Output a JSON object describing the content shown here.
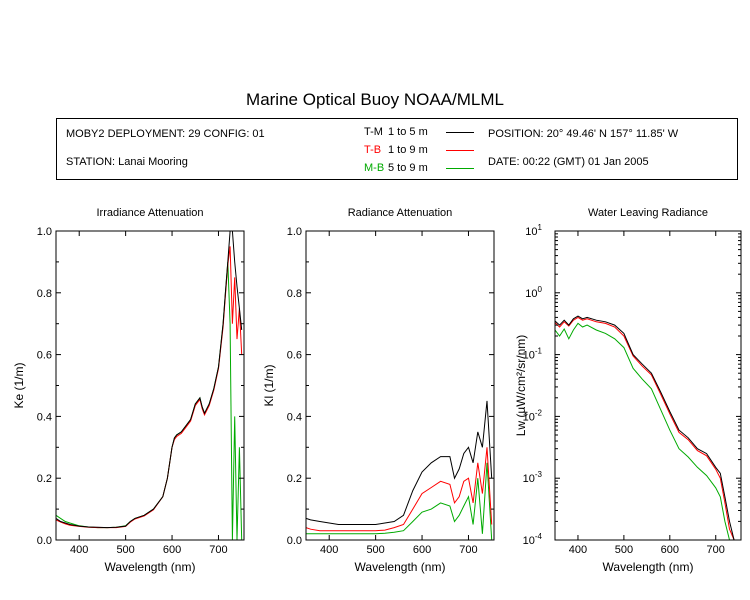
{
  "title": "Marine Optical Buoy NOAA/MLML",
  "info": {
    "deployment": "MOBY2 DEPLOYMENT: 29 CONFIG: 01",
    "station": "STATION: Lanai Mooring",
    "position": "POSITION: 20° 49.46' N   157° 11.85' W",
    "date": "DATE: 00:22 (GMT) 01 Jan 2005"
  },
  "legend": [
    {
      "code": "T-M",
      "range": "1 to 5  m",
      "color": "#000000"
    },
    {
      "code": "T-B",
      "range": "1 to 9  m",
      "color": "#ff0000"
    },
    {
      "code": "M-B",
      "range": "5 to 9  m",
      "color": "#00aa00"
    }
  ],
  "chart_data": [
    {
      "type": "line",
      "title": "Irradiance Attenuation",
      "xlabel": "Wavelength (nm)",
      "ylabel": "Ke  (1/m)",
      "xlim": [
        350,
        755
      ],
      "ylim": [
        0,
        1.0
      ],
      "xticks": [
        "400",
        "500",
        "600",
        "700"
      ],
      "yticks": [
        "0.0",
        "0.2",
        "0.4",
        "0.6",
        "0.8",
        "1.0"
      ],
      "x": [
        350,
        360,
        370,
        380,
        400,
        420,
        440,
        460,
        480,
        500,
        510,
        520,
        540,
        560,
        580,
        590,
        600,
        605,
        610,
        620,
        630,
        640,
        650,
        660,
        665,
        670,
        680,
        690,
        700,
        710,
        715,
        720,
        725,
        730,
        735,
        740,
        745,
        750
      ],
      "series": [
        {
          "name": "T-M",
          "values": [
            0.07,
            0.06,
            0.055,
            0.05,
            0.045,
            0.042,
            0.041,
            0.04,
            0.041,
            0.045,
            0.06,
            0.07,
            0.08,
            0.1,
            0.14,
            0.2,
            0.3,
            0.33,
            0.34,
            0.35,
            0.37,
            0.39,
            0.44,
            0.46,
            0.43,
            0.41,
            0.44,
            0.49,
            0.56,
            0.7,
            0.8,
            0.9,
            1.0,
            1.0,
            0.9,
            0.82,
            0.75,
            0.68
          ]
        },
        {
          "name": "T-B",
          "values": [
            0.065,
            0.058,
            0.052,
            0.048,
            0.044,
            0.041,
            0.04,
            0.04,
            0.04,
            0.044,
            0.058,
            0.068,
            0.078,
            0.098,
            0.14,
            0.2,
            0.3,
            0.325,
            0.335,
            0.345,
            0.365,
            0.385,
            0.435,
            0.455,
            0.425,
            0.405,
            0.435,
            0.485,
            0.555,
            0.69,
            0.79,
            0.89,
            0.95,
            0.7,
            0.85,
            0.65,
            0.75,
            0.6
          ]
        },
        {
          "name": "M-B",
          "values": [
            0.08,
            0.07,
            0.06,
            0.055,
            0.046,
            0.042,
            0.04,
            0.04,
            0.041,
            0.046,
            0.06,
            0.07,
            0.08,
            0.1,
            0.14,
            0.2,
            0.3,
            0.33,
            0.34,
            0.35,
            0.37,
            0.39,
            0.44,
            0.46,
            0.43,
            0.41,
            0.44,
            0.49,
            0.56,
            0.7,
            0.8,
            0.9,
            0.7,
            0.0,
            0.4,
            0.0,
            0.3,
            0.0
          ]
        }
      ]
    },
    {
      "type": "line",
      "title": "Radiance Attenuation",
      "xlabel": "Wavelength (nm)",
      "ylabel": "Kl  (1/m)",
      "xlim": [
        350,
        755
      ],
      "ylim": [
        0,
        1.0
      ],
      "xticks": [
        "400",
        "500",
        "600",
        "700"
      ],
      "yticks": [
        "0.0",
        "0.2",
        "0.4",
        "0.6",
        "0.8",
        "1.0"
      ],
      "x": [
        350,
        360,
        380,
        400,
        420,
        440,
        460,
        480,
        500,
        520,
        540,
        560,
        580,
        600,
        620,
        640,
        660,
        670,
        680,
        690,
        700,
        710,
        720,
        730,
        740,
        750
      ],
      "series": [
        {
          "name": "T-M",
          "values": [
            0.07,
            0.065,
            0.06,
            0.055,
            0.05,
            0.05,
            0.05,
            0.05,
            0.05,
            0.055,
            0.06,
            0.08,
            0.16,
            0.22,
            0.25,
            0.27,
            0.27,
            0.2,
            0.23,
            0.28,
            0.3,
            0.25,
            0.35,
            0.3,
            0.45,
            0.2
          ]
        },
        {
          "name": "T-B",
          "values": [
            0.04,
            0.035,
            0.03,
            0.03,
            0.03,
            0.03,
            0.03,
            0.03,
            0.03,
            0.032,
            0.04,
            0.05,
            0.1,
            0.15,
            0.17,
            0.19,
            0.18,
            0.12,
            0.14,
            0.19,
            0.2,
            0.12,
            0.25,
            0.15,
            0.3,
            0.05
          ]
        },
        {
          "name": "M-B",
          "values": [
            0.02,
            0.02,
            0.02,
            0.02,
            0.02,
            0.02,
            0.02,
            0.02,
            0.02,
            0.022,
            0.025,
            0.03,
            0.06,
            0.09,
            0.1,
            0.12,
            0.11,
            0.06,
            0.08,
            0.11,
            0.14,
            0.05,
            0.2,
            0.02,
            0.25,
            0.0
          ]
        }
      ]
    },
    {
      "type": "line",
      "title": "Water Leaving Radiance",
      "xlabel": "Wavelength (nm)",
      "ylabel": "Lw  (µW/cm²/sr/nm)",
      "xlim": [
        350,
        755
      ],
      "ylim": [
        0.0001,
        10
      ],
      "log_y": true,
      "xticks": [
        "400",
        "500",
        "600",
        "700"
      ],
      "yticks": [
        "10^1",
        "10^0",
        "10^-1",
        "10^-2",
        "10^-3",
        "10^-4"
      ],
      "x": [
        350,
        360,
        370,
        380,
        390,
        400,
        410,
        420,
        440,
        460,
        480,
        500,
        520,
        540,
        560,
        580,
        600,
        620,
        640,
        660,
        680,
        700,
        710,
        720,
        730,
        740
      ],
      "series": [
        {
          "name": "T-M",
          "values": [
            0.35,
            0.3,
            0.36,
            0.3,
            0.38,
            0.42,
            0.38,
            0.4,
            0.36,
            0.34,
            0.3,
            0.22,
            0.1,
            0.07,
            0.05,
            0.025,
            0.012,
            0.006,
            0.0045,
            0.003,
            0.0025,
            0.0015,
            0.0012,
            0.0005,
            0.0002,
            0.0001
          ]
        },
        {
          "name": "T-B",
          "values": [
            0.33,
            0.28,
            0.34,
            0.29,
            0.36,
            0.4,
            0.36,
            0.38,
            0.34,
            0.32,
            0.28,
            0.2,
            0.095,
            0.065,
            0.047,
            0.023,
            0.011,
            0.0055,
            0.0042,
            0.0028,
            0.0023,
            0.0014,
            0.001,
            0.0004,
            0.00015,
            0.0001
          ]
        },
        {
          "name": "M-B",
          "values": [
            0.25,
            0.2,
            0.26,
            0.18,
            0.25,
            0.32,
            0.28,
            0.3,
            0.25,
            0.22,
            0.18,
            0.13,
            0.06,
            0.04,
            0.028,
            0.013,
            0.006,
            0.003,
            0.0022,
            0.0015,
            0.0011,
            0.0007,
            0.0005,
            0.0002,
            0.0001,
            0.0001
          ]
        }
      ]
    }
  ]
}
